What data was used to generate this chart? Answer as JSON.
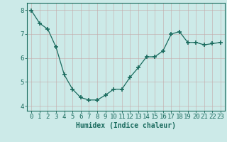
{
  "x": [
    0,
    1,
    2,
    3,
    4,
    5,
    6,
    7,
    8,
    9,
    10,
    11,
    12,
    13,
    14,
    15,
    16,
    17,
    18,
    19,
    20,
    21,
    22,
    23
  ],
  "y": [
    7.98,
    7.45,
    7.2,
    6.45,
    5.3,
    4.7,
    4.35,
    4.25,
    4.25,
    4.45,
    4.7,
    4.7,
    5.2,
    5.6,
    6.05,
    6.05,
    6.3,
    7.0,
    7.1,
    6.65,
    6.65,
    6.55,
    6.6,
    6.65
  ],
  "line_color": "#1a6b5e",
  "marker": "+",
  "marker_size": 4,
  "bg_color": "#cceae8",
  "grid_color": "#b8d8d5",
  "xlabel": "Humidex (Indice chaleur)",
  "xlim": [
    -0.5,
    23.5
  ],
  "ylim": [
    3.8,
    8.3
  ],
  "yticks": [
    4,
    5,
    6,
    7,
    8
  ],
  "xticks": [
    0,
    1,
    2,
    3,
    4,
    5,
    6,
    7,
    8,
    9,
    10,
    11,
    12,
    13,
    14,
    15,
    16,
    17,
    18,
    19,
    20,
    21,
    22,
    23
  ],
  "xlabel_fontsize": 7,
  "tick_fontsize": 6.5,
  "text_color": "#1a6b5e"
}
